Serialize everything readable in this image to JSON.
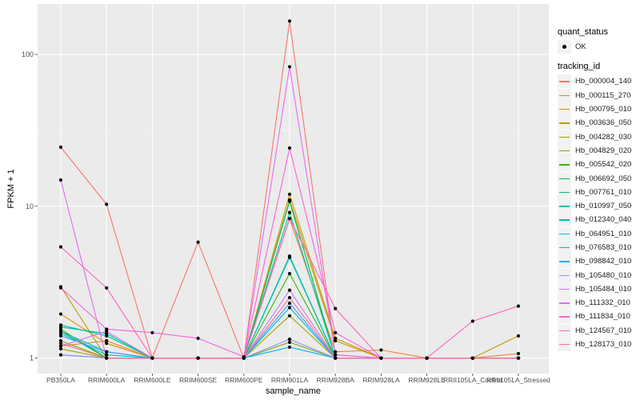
{
  "chart_data": {
    "type": "line",
    "xlabel": "sample_name",
    "ylabel": "FPKM + 1",
    "y_scale": "log10",
    "ylim": [
      0.79,
      215
    ],
    "y_ticks": [
      1,
      10,
      100
    ],
    "y_tick_labels": [
      "1",
      "10",
      "100"
    ],
    "grid": true,
    "legend_position": "right",
    "categories": [
      "PB350LA",
      "RRIM600LA",
      "RRIM600LE",
      "RRIM600SE",
      "RRIM600PE",
      "RRIM901LA",
      "RRIM928BA",
      "RRIM928LA",
      "RRIM928LE",
      "RRII105LA_Control",
      "RRII105LA_Stressed"
    ],
    "shape_legend": {
      "title": "quant_status",
      "items": [
        "OK"
      ]
    },
    "color_legend_title": "tracking_id",
    "series": [
      {
        "name": "Hb_000004_140",
        "color": "#F8766D",
        "values": [
          24.5,
          10.3,
          1,
          5.8,
          1,
          166,
          1.05,
          1,
          1,
          1,
          1
        ]
      },
      {
        "name": "Hb_000115_270",
        "color": "#EA8331",
        "values": [
          1.2,
          1.3,
          1,
          1,
          1,
          8.3,
          1.1,
          1.13,
          1,
          1,
          1.07
        ]
      },
      {
        "name": "Hb_000795_010",
        "color": "#D89000",
        "values": [
          1.95,
          1.25,
          1,
          1,
          1,
          12,
          1.35,
          1,
          1,
          1,
          1
        ]
      },
      {
        "name": "Hb_003636_050",
        "color": "#C09B00",
        "values": [
          2.95,
          1.0,
          1,
          1,
          1,
          11,
          1.3,
          1,
          1,
          1,
          1.4
        ]
      },
      {
        "name": "Hb_004282_030",
        "color": "#A3A500",
        "values": [
          1.15,
          1,
          1,
          1,
          1,
          1.9,
          1,
          1,
          1,
          1,
          1
        ]
      },
      {
        "name": "Hb_004829_020",
        "color": "#7CAE00",
        "values": [
          1.3,
          1,
          1,
          1,
          1,
          1.27,
          1,
          1,
          1,
          1,
          1
        ]
      },
      {
        "name": "Hb_005542_020",
        "color": "#39B600",
        "values": [
          1.55,
          1,
          1,
          1,
          1,
          3.6,
          1,
          1,
          1,
          1,
          1
        ]
      },
      {
        "name": "Hb_006692_050",
        "color": "#00BB4E",
        "values": [
          1.5,
          1,
          1,
          1,
          1,
          10.8,
          1,
          1,
          1,
          1,
          1
        ]
      },
      {
        "name": "Hb_007761_010",
        "color": "#00BF7D",
        "values": [
          1.65,
          1.4,
          1,
          1,
          1,
          4.7,
          1,
          1,
          1,
          1,
          1
        ]
      },
      {
        "name": "Hb_010997_050",
        "color": "#00C1A3",
        "values": [
          1.6,
          1.45,
          1,
          1,
          1,
          9.1,
          1,
          1,
          1,
          1,
          1
        ]
      },
      {
        "name": "Hb_012340_040",
        "color": "#00BFC4",
        "values": [
          1.5,
          1.1,
          1,
          1,
          1,
          4.6,
          1,
          1,
          1,
          1,
          1
        ]
      },
      {
        "name": "Hb_064951_010",
        "color": "#00BAE0",
        "values": [
          1.45,
          1.05,
          1,
          1,
          1,
          2.15,
          1,
          1,
          1,
          1,
          1
        ]
      },
      {
        "name": "Hb_076583_010",
        "color": "#00B0F6",
        "values": [
          1.05,
          1.0,
          1,
          1,
          1,
          1.18,
          1,
          1,
          1,
          1,
          1
        ]
      },
      {
        "name": "Hb_098842_010",
        "color": "#35A2FF",
        "values": [
          1.4,
          1.1,
          1,
          1,
          1,
          2.3,
          1,
          1,
          1,
          1,
          1
        ]
      },
      {
        "name": "Hb_105480_010",
        "color": "#9590FF",
        "values": [
          1.05,
          1.0,
          1,
          1,
          1,
          1.33,
          1,
          1,
          1,
          1,
          1
        ]
      },
      {
        "name": "Hb_105484_010",
        "color": "#C77CFF",
        "values": [
          1.2,
          1.5,
          1,
          1,
          1,
          2.8,
          1,
          1,
          1,
          1,
          1
        ]
      },
      {
        "name": "Hb_111332_010",
        "color": "#E76BF3",
        "values": [
          14.9,
          1,
          1,
          1,
          1,
          83,
          1.05,
          1,
          1,
          1,
          1
        ]
      },
      {
        "name": "Hb_111834_010",
        "color": "#FA62DB",
        "values": [
          2.9,
          1.55,
          1.47,
          1.35,
          1.02,
          24.2,
          1.47,
          1,
          1,
          1,
          1
        ]
      },
      {
        "name": "Hb_124567_010",
        "color": "#FF62BC",
        "values": [
          5.4,
          2.9,
          1,
          1,
          1,
          8.3,
          2.12,
          1,
          1,
          1.75,
          2.2
        ]
      },
      {
        "name": "Hb_128173_010",
        "color": "#FF6C91",
        "values": [
          1.25,
          1.0,
          1,
          1,
          1,
          2.5,
          1,
          1,
          1,
          1,
          1
        ]
      }
    ]
  }
}
